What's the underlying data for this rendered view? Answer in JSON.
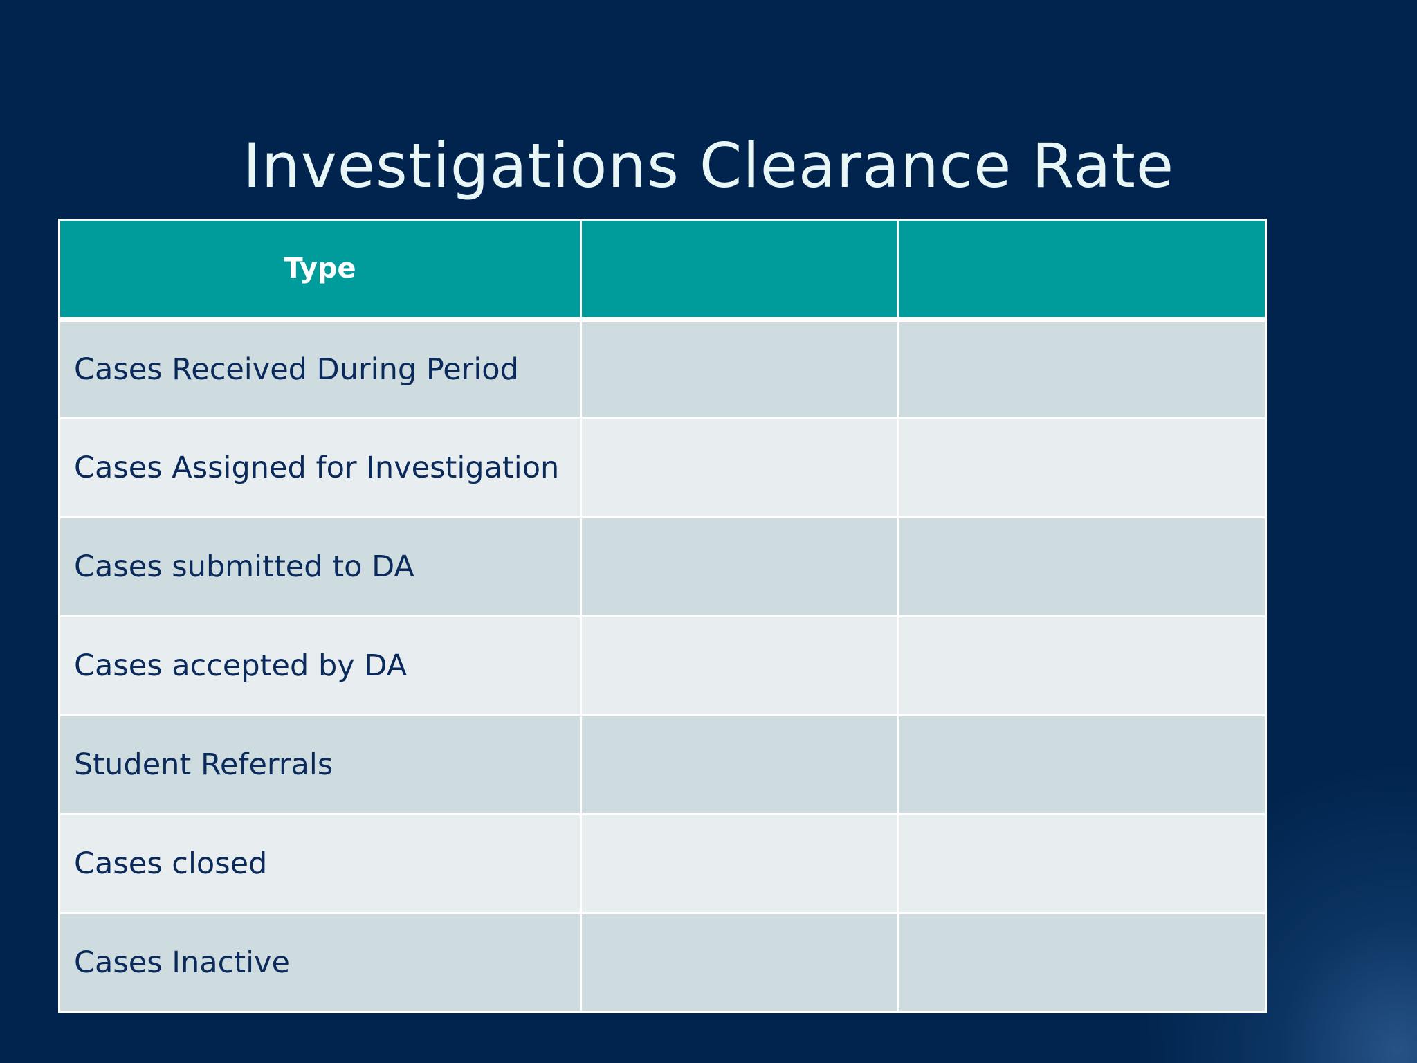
{
  "slide": {
    "title": "Investigations Clearance Rate"
  },
  "table": {
    "headers": [
      "Type",
      "",
      ""
    ],
    "rows": [
      {
        "label": "Cases Received During Period",
        "values": [
          "",
          ""
        ]
      },
      {
        "label": "Cases Assigned for Investigation",
        "values": [
          "",
          ""
        ]
      },
      {
        "label": "Cases submitted to DA",
        "values": [
          "",
          ""
        ]
      },
      {
        "label": "Cases accepted by DA",
        "values": [
          "",
          ""
        ]
      },
      {
        "label": "Student Referrals",
        "values": [
          "",
          ""
        ]
      },
      {
        "label": "Cases closed",
        "values": [
          "",
          ""
        ]
      },
      {
        "label": "Cases Inactive",
        "values": [
          "",
          ""
        ]
      }
    ]
  },
  "colors": {
    "background": "#00244d",
    "header": "#009b9b",
    "row_band": "#cedcdf",
    "row_plain": "#e8eeef",
    "text": "#0b2a5c",
    "title": "#e8f6f6"
  }
}
